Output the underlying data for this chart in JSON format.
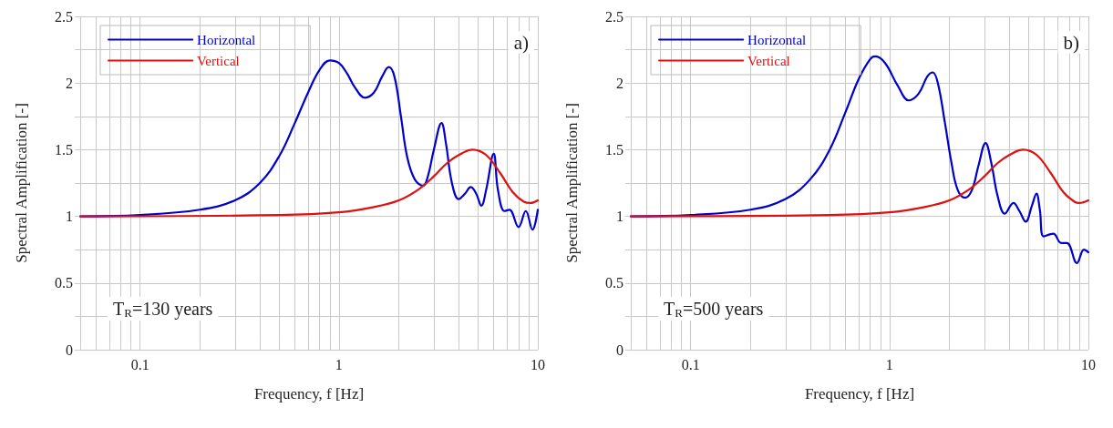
{
  "chart_data": [
    {
      "type": "line",
      "xlabel": "Frequency, f [Hz]",
      "ylabel": "Spectral Amplification [-]",
      "annotations": [
        "a)",
        "T$_{R}$=130 years"
      ],
      "log": "x",
      "grid": true,
      "legend": "top left",
      "marker": "none",
      "line_style": "solid",
      "xlim": [
        0.05,
        10
      ],
      "xticks": [
        {
          "value": 0.05,
          "label": null
        },
        {
          "value": 0.06,
          "label": null
        },
        {
          "value": 0.07,
          "label": null
        },
        {
          "value": 0.08,
          "label": null
        },
        {
          "value": 0.09,
          "label": null
        },
        0.1,
        {
          "value": 0.2,
          "label": null
        },
        {
          "value": 0.3,
          "label": null
        },
        {
          "value": 0.4,
          "label": null
        },
        {
          "value": 0.5,
          "label": null
        },
        {
          "value": 0.6,
          "label": null
        },
        {
          "value": 0.7,
          "label": null
        },
        {
          "value": 0.8,
          "label": null
        },
        {
          "value": 0.9,
          "label": null
        },
        1,
        {
          "value": 2,
          "label": null
        },
        {
          "value": 3,
          "label": null
        },
        {
          "value": 4,
          "label": null
        },
        {
          "value": 5,
          "label": null
        },
        {
          "value": 6,
          "label": null
        },
        {
          "value": 7,
          "label": null
        },
        {
          "value": 8,
          "label": null
        },
        {
          "value": 9,
          "label": null
        },
        10
      ],
      "ylim": [
        0,
        2.5
      ],
      "yticks": [
        0,
        {
          "value": 0.25,
          "label": null
        },
        0.5,
        {
          "value": 0.75,
          "label": null
        },
        1,
        {
          "value": 1.25,
          "label": null
        },
        1.5,
        {
          "value": 1.75,
          "label": null
        },
        2,
        {
          "value": 2.25,
          "label": null
        },
        2.5
      ],
      "series": [
        {
          "name": "Horizontal",
          "color": "#0000cc",
          "x": [
            0.05,
            0.1,
            0.2,
            0.3,
            0.4,
            0.5,
            0.6,
            0.7,
            0.8,
            0.9,
            1.0,
            1.1,
            1.2,
            1.35,
            1.5,
            1.65,
            1.78,
            1.9,
            2.05,
            2.2,
            2.4,
            2.65,
            2.8,
            3.0,
            3.28,
            3.45,
            3.7,
            4.0,
            4.3,
            4.6,
            4.9,
            5.2,
            5.5,
            6.0,
            6.3,
            6.8,
            7.2,
            8.0,
            8.7,
            9.4,
            10
          ],
          "values": [
            1.0,
            1.01,
            1.05,
            1.12,
            1.25,
            1.45,
            1.7,
            1.93,
            2.1,
            2.17,
            2.15,
            2.07,
            1.97,
            1.89,
            1.93,
            2.05,
            2.12,
            2.05,
            1.75,
            1.45,
            1.28,
            1.23,
            1.3,
            1.5,
            1.7,
            1.55,
            1.25,
            1.13,
            1.17,
            1.22,
            1.17,
            1.08,
            1.2,
            1.47,
            1.2,
            1.04,
            1.05,
            0.92,
            1.04,
            0.9,
            1.05
          ]
        },
        {
          "name": "Vertical",
          "color": "#dd1111",
          "x": [
            0.05,
            0.5,
            1,
            1.5,
            2,
            2.5,
            3,
            3.5,
            4,
            4.7,
            5.5,
            6.5,
            7.5,
            8.5,
            9.2,
            10
          ],
          "values": [
            1.0,
            1.01,
            1.03,
            1.07,
            1.12,
            1.2,
            1.3,
            1.4,
            1.46,
            1.5,
            1.46,
            1.32,
            1.18,
            1.11,
            1.1,
            1.12
          ]
        }
      ]
    },
    {
      "type": "line",
      "xlabel": "Frequency, f [Hz]",
      "ylabel": "Spectral Amplification [-]",
      "annotations": [
        "b)",
        "T$_{R}$=500 years"
      ],
      "log": "x",
      "grid": true,
      "legend": "top left",
      "marker": "none",
      "line_style": "solid",
      "xlim": [
        0.05,
        10
      ],
      "xticks": [
        {
          "value": 0.05,
          "label": null
        },
        {
          "value": 0.06,
          "label": null
        },
        {
          "value": 0.07,
          "label": null
        },
        {
          "value": 0.08,
          "label": null
        },
        {
          "value": 0.09,
          "label": null
        },
        0.1,
        {
          "value": 0.2,
          "label": null
        },
        {
          "value": 0.3,
          "label": null
        },
        {
          "value": 0.4,
          "label": null
        },
        {
          "value": 0.5,
          "label": null
        },
        {
          "value": 0.6,
          "label": null
        },
        {
          "value": 0.7,
          "label": null
        },
        {
          "value": 0.8,
          "label": null
        },
        {
          "value": 0.9,
          "label": null
        },
        1,
        {
          "value": 2,
          "label": null
        },
        {
          "value": 3,
          "label": null
        },
        {
          "value": 4,
          "label": null
        },
        {
          "value": 5,
          "label": null
        },
        {
          "value": 6,
          "label": null
        },
        {
          "value": 7,
          "label": null
        },
        {
          "value": 8,
          "label": null
        },
        {
          "value": 9,
          "label": null
        },
        10
      ],
      "ylim": [
        0,
        2.5
      ],
      "yticks": [
        0,
        {
          "value": 0.25,
          "label": null
        },
        0.5,
        {
          "value": 0.75,
          "label": null
        },
        1,
        {
          "value": 1.25,
          "label": null
        },
        1.5,
        {
          "value": 1.75,
          "label": null
        },
        2,
        {
          "value": 2.25,
          "label": null
        },
        2.5
      ],
      "series": [
        {
          "name": "Horizontal",
          "color": "#0000cc",
          "x": [
            0.05,
            0.1,
            0.2,
            0.3,
            0.4,
            0.5,
            0.6,
            0.7,
            0.8,
            0.85,
            0.95,
            1.1,
            1.25,
            1.4,
            1.55,
            1.65,
            1.75,
            1.9,
            2.05,
            2.2,
            2.4,
            2.6,
            2.8,
            3.04,
            3.25,
            3.5,
            3.8,
            4.2,
            4.5,
            4.84,
            5.2,
            5.48,
            5.7,
            5.96,
            6.66,
            7.3,
            7.8,
            8.76,
            9.5,
            10
          ],
          "values": [
            1.0,
            1.01,
            1.05,
            1.13,
            1.28,
            1.5,
            1.78,
            2.03,
            2.18,
            2.2,
            2.15,
            1.98,
            1.87,
            1.92,
            2.05,
            2.08,
            2.0,
            1.7,
            1.4,
            1.2,
            1.14,
            1.2,
            1.38,
            1.55,
            1.4,
            1.15,
            1.02,
            1.1,
            1.04,
            0.96,
            1.08,
            1.17,
            1.05,
            0.85,
            0.87,
            0.8,
            0.8,
            0.65,
            0.75,
            0.73
          ]
        },
        {
          "name": "Vertical",
          "color": "#dd1111",
          "x": [
            0.05,
            0.5,
            1,
            1.5,
            2,
            2.5,
            3,
            3.5,
            4,
            4.7,
            5.5,
            6.5,
            7.5,
            8.5,
            9,
            10
          ],
          "values": [
            1.0,
            1.01,
            1.03,
            1.07,
            1.12,
            1.2,
            1.3,
            1.4,
            1.46,
            1.5,
            1.46,
            1.32,
            1.18,
            1.11,
            1.1,
            1.12
          ]
        }
      ]
    }
  ]
}
